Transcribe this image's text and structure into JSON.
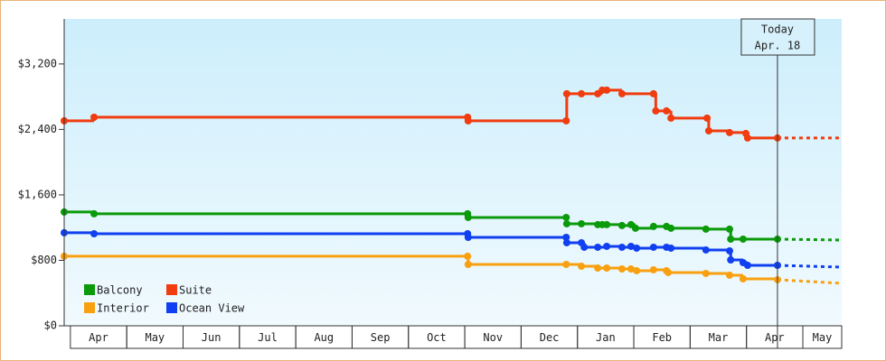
{
  "chart_data": {
    "type": "step-line",
    "xlim": [
      -0.11,
      13.69
    ],
    "ylim": [
      0,
      3750
    ],
    "xticks": [
      {
        "value": 0.5,
        "label": "Apr"
      },
      {
        "value": 1.5,
        "label": "May"
      },
      {
        "value": 2.5,
        "label": "Jun"
      },
      {
        "value": 3.5,
        "label": "Jul"
      },
      {
        "value": 4.5,
        "label": "Aug"
      },
      {
        "value": 5.5,
        "label": "Sep"
      },
      {
        "value": 6.5,
        "label": "Oct"
      },
      {
        "value": 7.5,
        "label": "Nov"
      },
      {
        "value": 8.5,
        "label": "Dec"
      },
      {
        "value": 9.5,
        "label": "Jan"
      },
      {
        "value": 10.5,
        "label": "Feb"
      },
      {
        "value": 11.5,
        "label": "Mar"
      },
      {
        "value": 12.5,
        "label": "Apr"
      },
      {
        "value": 13.5,
        "label": "May"
      }
    ],
    "yticks": [
      {
        "value": 0,
        "label": "$0"
      },
      {
        "value": 800,
        "label": "$800"
      },
      {
        "value": 1600,
        "label": "$1,600"
      },
      {
        "value": 2400,
        "label": "$2,400"
      },
      {
        "value": 3200,
        "label": "$3,200"
      }
    ],
    "today": {
      "x": 12.55,
      "label": "Today",
      "date": "Apr. 18"
    },
    "forecast_x": [
      12.55,
      13.69
    ],
    "legend": "lower-left",
    "series": [
      {
        "name": "Balcony",
        "color": "#0a9a0a",
        "x": [
          -0.11,
          0.42,
          7.05,
          7.06,
          8.8,
          8.81,
          9.07,
          9.36,
          9.44,
          9.52,
          9.79,
          9.95,
          10.03,
          10.35,
          10.58,
          10.66,
          11.28,
          11.7,
          11.72,
          11.94,
          12.55
        ],
        "values": [
          1391,
          1369,
          1369,
          1324,
          1324,
          1247,
          1247,
          1236,
          1236,
          1236,
          1225,
          1236,
          1192,
          1214,
          1214,
          1192,
          1181,
          1181,
          1059,
          1059,
          1059
        ],
        "forecast": [
          1059,
          1048
        ]
      },
      {
        "name": "Suite",
        "color": "#f03c0f",
        "x": [
          -0.11,
          0.42,
          7.05,
          7.06,
          8.8,
          8.81,
          9.07,
          9.36,
          9.44,
          9.52,
          9.79,
          10.35,
          10.39,
          10.58,
          10.66,
          11.3,
          11.33,
          11.7,
          11.99,
          12.02,
          12.55
        ],
        "values": [
          2505,
          2549,
          2549,
          2505,
          2505,
          2836,
          2836,
          2836,
          2880,
          2880,
          2836,
          2836,
          2626,
          2626,
          2538,
          2538,
          2383,
          2361,
          2350,
          2295,
          2295
        ],
        "forecast": [
          2295,
          2295
        ]
      },
      {
        "name": "Interior",
        "color": "#f8a010",
        "x": [
          -0.11,
          7.05,
          7.06,
          8.8,
          9.07,
          9.36,
          9.52,
          9.79,
          9.95,
          10.05,
          10.35,
          10.58,
          10.61,
          11.28,
          11.7,
          11.94,
          12.55
        ],
        "values": [
          850,
          850,
          750,
          750,
          728,
          706,
          706,
          695,
          695,
          673,
          684,
          673,
          651,
          640,
          618,
          574,
          563
        ],
        "forecast": [
          563,
          519
        ]
      },
      {
        "name": "Ocean View",
        "color": "#1040f0",
        "x": [
          -0.11,
          0.42,
          7.05,
          7.06,
          8.8,
          8.81,
          9.07,
          9.12,
          9.36,
          9.52,
          9.79,
          9.95,
          10.05,
          10.35,
          10.58,
          10.66,
          11.28,
          11.7,
          11.72,
          11.94,
          12.02,
          12.55
        ],
        "values": [
          1137,
          1125,
          1125,
          1081,
          1081,
          1015,
          1015,
          960,
          960,
          971,
          960,
          971,
          949,
          960,
          960,
          949,
          927,
          916,
          805,
          772,
          739,
          739
        ],
        "forecast": [
          739,
          717
        ]
      }
    ]
  }
}
